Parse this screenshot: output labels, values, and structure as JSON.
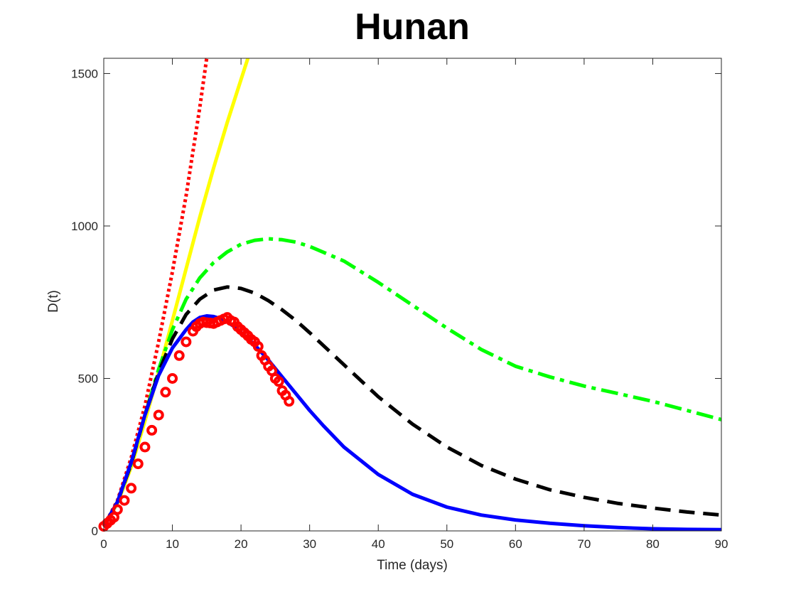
{
  "chart_data": {
    "type": "line",
    "title": "Hunan",
    "xlabel": "Time (days)",
    "ylabel": "D(t)",
    "xlim": [
      0,
      90
    ],
    "ylim": [
      0,
      1550
    ],
    "xticks": [
      0,
      10,
      20,
      30,
      40,
      50,
      60,
      70,
      80,
      90
    ],
    "yticks": [
      0,
      500,
      1000,
      1500
    ],
    "grid": false,
    "series": [
      {
        "style": "dotted",
        "color": "#ff0000",
        "x": [
          0,
          2,
          4,
          6,
          8,
          10,
          12,
          14,
          15
        ],
        "y": [
          15,
          100,
          240,
          410,
          620,
          850,
          1100,
          1390,
          1550
        ]
      },
      {
        "style": "solid",
        "color": "#ffff00",
        "x": [
          0,
          2,
          4,
          6,
          8,
          10,
          12,
          14,
          16,
          18,
          20,
          21
        ],
        "y": [
          15,
          90,
          210,
          360,
          520,
          690,
          860,
          1030,
          1190,
          1340,
          1480,
          1550
        ]
      },
      {
        "style": "dash-dot",
        "color": "#00ff00",
        "x": [
          0,
          2,
          4,
          6,
          8,
          10,
          12,
          14,
          16,
          18,
          20,
          22,
          24,
          26,
          28,
          30,
          35,
          40,
          45,
          50,
          55,
          60,
          65,
          70,
          75,
          80,
          85,
          90
        ],
        "y": [
          15,
          95,
          220,
          380,
          530,
          660,
          760,
          830,
          880,
          915,
          940,
          953,
          958,
          955,
          947,
          933,
          885,
          815,
          740,
          665,
          595,
          540,
          505,
          475,
          450,
          425,
          395,
          365
        ]
      },
      {
        "style": "dashed",
        "color": "#000000",
        "x": [
          0,
          2,
          4,
          6,
          8,
          10,
          12,
          14,
          16,
          18,
          20,
          22,
          24,
          26,
          28,
          30,
          35,
          40,
          45,
          50,
          55,
          60,
          65,
          70,
          75,
          80,
          85,
          90
        ],
        "y": [
          15,
          95,
          220,
          380,
          520,
          630,
          710,
          760,
          790,
          800,
          795,
          780,
          755,
          725,
          690,
          650,
          545,
          440,
          350,
          275,
          215,
          170,
          135,
          110,
          90,
          75,
          62,
          52
        ]
      },
      {
        "style": "solid",
        "color": "#0000ff",
        "x": [
          0,
          2,
          4,
          6,
          8,
          10,
          12,
          13,
          14,
          15,
          16,
          17,
          18,
          19,
          20,
          22,
          24,
          26,
          28,
          30,
          32,
          35,
          40,
          45,
          50,
          55,
          60,
          65,
          70,
          75,
          80,
          85,
          90
        ],
        "y": [
          15,
          95,
          225,
          380,
          510,
          600,
          660,
          685,
          700,
          705,
          703,
          696,
          685,
          670,
          650,
          610,
          560,
          505,
          450,
          395,
          345,
          275,
          185,
          120,
          78,
          52,
          36,
          25,
          17,
          11,
          7,
          5,
          4
        ]
      },
      {
        "style": "markers",
        "color": "#ff0000",
        "x": [
          0,
          0.5,
          1,
          1.5,
          2,
          3,
          4,
          5,
          6,
          7,
          8,
          9,
          10,
          11,
          12,
          13,
          13.5,
          14,
          14.5,
          15,
          15.5,
          16,
          16.5,
          17,
          17.5,
          18,
          18.5,
          19,
          19.5,
          20,
          20.5,
          21,
          21.5,
          22,
          22.5,
          23,
          23.5,
          24,
          24.5,
          25,
          25.5,
          26,
          26.5,
          27
        ],
        "y": [
          15,
          25,
          35,
          45,
          70,
          100,
          140,
          220,
          275,
          330,
          380,
          455,
          500,
          575,
          620,
          655,
          670,
          680,
          685,
          683,
          682,
          680,
          685,
          690,
          695,
          700,
          690,
          685,
          670,
          660,
          650,
          640,
          628,
          620,
          605,
          575,
          560,
          540,
          525,
          500,
          490,
          460,
          445,
          425
        ]
      }
    ]
  }
}
